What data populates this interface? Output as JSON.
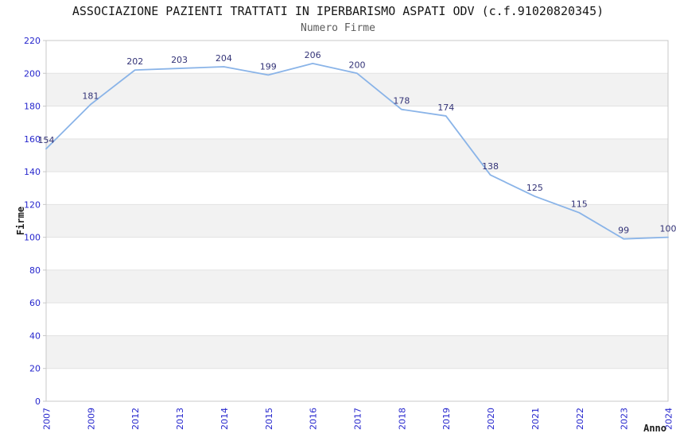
{
  "chart_data": {
    "type": "line",
    "title": "ASSOCIAZIONE PAZIENTI TRATTATI IN IPERBARISMO ASPATI ODV (c.f.91020820345)",
    "subtitle": "Numero Firme",
    "xlabel": "Anno",
    "ylabel": "Firme",
    "categories": [
      "2007",
      "2009",
      "2012",
      "2013",
      "2014",
      "2015",
      "2016",
      "2017",
      "2018",
      "2019",
      "2020",
      "2021",
      "2022",
      "2023",
      "2024"
    ],
    "values": [
      154,
      181,
      202,
      203,
      204,
      199,
      206,
      200,
      178,
      174,
      138,
      125,
      115,
      99,
      100
    ],
    "ylim": [
      0,
      220
    ],
    "ytick_step": 20,
    "yticks": [
      0,
      20,
      40,
      60,
      80,
      100,
      120,
      140,
      160,
      180,
      200,
      220
    ],
    "grid": "horizontal-alternating-bands",
    "legend": "none",
    "data_labels_visible": true,
    "x_tick_rotation_degrees": 90,
    "colors": {
      "line": "#8ab4e8",
      "data_label": "#333377",
      "tick_label": "#2626cd",
      "band": "#f2f2f2",
      "band_edge": "#e2e2e2",
      "border": "#c8c8c8",
      "title": "#161616",
      "subtitle": "#5b5b5b",
      "axis_label": "#1d1d1d"
    }
  }
}
